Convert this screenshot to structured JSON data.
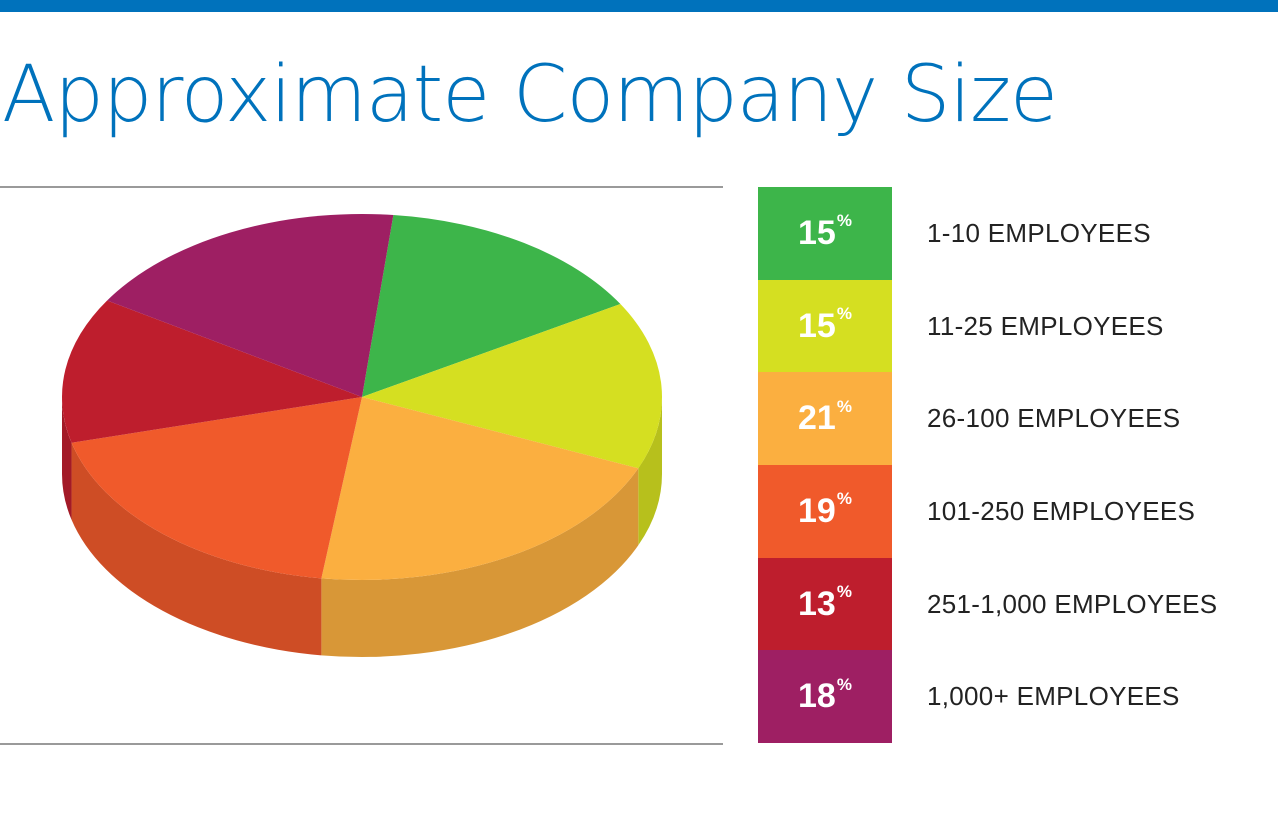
{
  "colors": {
    "brand": "#0072bc",
    "rule": "#9a9a9a",
    "text": "#222222"
  },
  "chart_data": {
    "type": "pie",
    "title": "Approximate Company Size",
    "percent_symbol": "%",
    "slices": [
      {
        "label": "1-10 EMPLOYEES",
        "value": 15,
        "display": "15",
        "color": "#3db54a"
      },
      {
        "label": "11-25 EMPLOYEES",
        "value": 15,
        "display": "15",
        "color": "#d5df21"
      },
      {
        "label": "26-100 EMPLOYEES",
        "value": 21,
        "display": "21",
        "color": "#fbaf40"
      },
      {
        "label": "101-250 EMPLOYEES",
        "value": 19,
        "display": "19",
        "color": "#f05a2b"
      },
      {
        "label": "251-1,000 EMPLOYEES",
        "value": 13,
        "display": "13",
        "color": "#be1e2d"
      },
      {
        "label": "1,000+ EMPLOYEES",
        "value": 18,
        "display": "18",
        "color": "#9e1f63"
      }
    ],
    "legend_position": "right"
  }
}
